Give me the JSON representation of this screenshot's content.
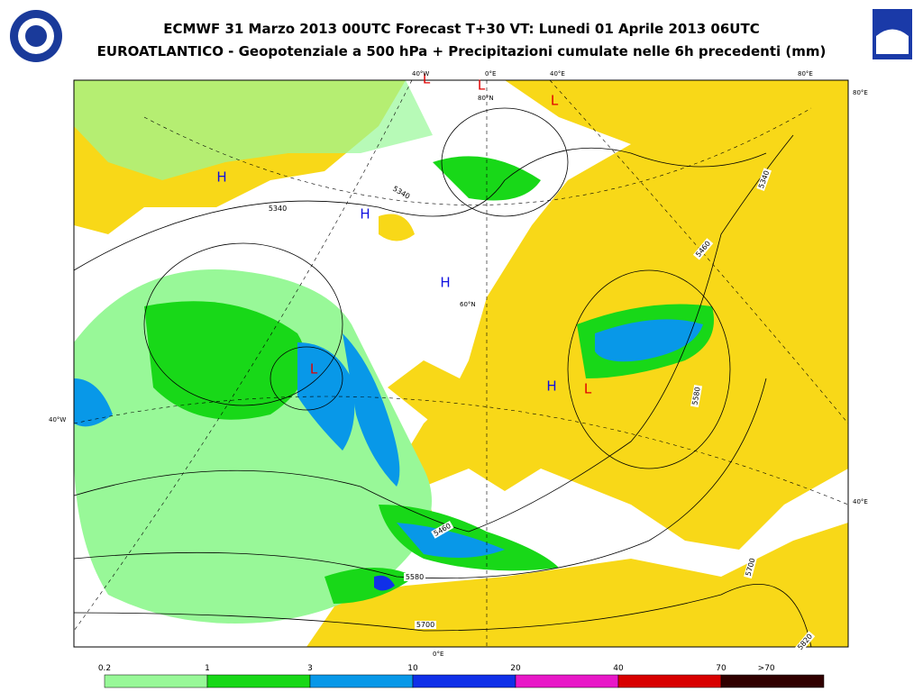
{
  "header": {
    "title": "ECMWF 31 Marzo 2013 00UTC Forecast T+30 VT: Lunedi 01 Aprile 2013 06UTC",
    "subtitle": "EUROATLANTICO - Geopotenziale a 500 hPa + Precipitazioni cumulate nelle 6h precedenti (mm)"
  },
  "map": {
    "pressure_centers": [
      {
        "label": "H",
        "color": "#1010e0"
      },
      {
        "label": "H",
        "color": "#1010e0"
      },
      {
        "label": "H",
        "color": "#1010e0"
      },
      {
        "label": "H",
        "color": "#1010e0"
      },
      {
        "label": "L",
        "color": "#e00000"
      },
      {
        "label": "L",
        "color": "#e00000"
      },
      {
        "label": "L",
        "color": "#e00000"
      },
      {
        "label": "L",
        "color": "#e00000"
      },
      {
        "label": "L",
        "color": "#e00000"
      }
    ],
    "contour_labels": [
      "5340",
      "5340",
      "5340",
      "5460",
      "5460",
      "5580",
      "5580",
      "5700",
      "5700",
      "5820"
    ],
    "graticule_labels": [
      "40°W",
      "0°E",
      "40°E",
      "80°E",
      "80°E",
      "80°N",
      "60°N",
      "40°W",
      "40°E",
      "0°E"
    ]
  },
  "legend": {
    "labels": [
      "0.2",
      "1",
      "3",
      "10",
      "20",
      "40",
      "70",
      ">70"
    ],
    "colors": [
      "#98f898",
      "#18d818",
      "#0898e8",
      "#1030e8",
      "#e818c8",
      "#d80000",
      "#300000"
    ]
  }
}
